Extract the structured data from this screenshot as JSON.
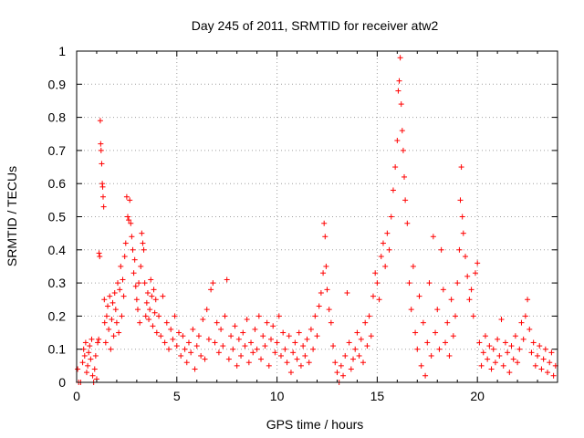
{
  "chart_data": {
    "type": "scatter",
    "title": "Day 245 of 2011, SRMTID for receiver atw2",
    "xlabel": "GPS time / hours",
    "ylabel": "SRMTID / TECUs",
    "xlim": [
      0,
      24
    ],
    "ylim": [
      0,
      1
    ],
    "xticks": [
      0,
      5,
      10,
      15,
      20
    ],
    "xtick_labels": [
      "0",
      "5",
      "10",
      "15",
      "20"
    ],
    "yticks": [
      0,
      0.1,
      0.2,
      0.3,
      0.4,
      0.5,
      0.6,
      0.7,
      0.8,
      0.9,
      1
    ],
    "ytick_labels": [
      "0",
      "0.1",
      "0.2",
      "0.3",
      "0.4",
      "0.5",
      "0.6",
      "0.7",
      "0.8",
      "0.9",
      "1"
    ],
    "grid": true,
    "marker": "plus",
    "series": [
      {
        "name": "SRMTID",
        "color": "#ff0000",
        "points": [
          [
            0.05,
            0.04
          ],
          [
            0.1,
            0.0
          ],
          [
            0.2,
            0.0
          ],
          [
            0.3,
            0.06
          ],
          [
            0.35,
            0.1
          ],
          [
            0.4,
            0.08
          ],
          [
            0.45,
            0.12
          ],
          [
            0.5,
            0.03
          ],
          [
            0.55,
            0.05
          ],
          [
            0.6,
            0.09
          ],
          [
            0.65,
            0.11
          ],
          [
            0.7,
            0.07
          ],
          [
            0.75,
            0.13
          ],
          [
            0.8,
            0.02
          ],
          [
            0.85,
            0.0
          ],
          [
            0.9,
            0.04
          ],
          [
            0.95,
            0.08
          ],
          [
            1.0,
            0.01
          ],
          [
            1.05,
            0.12
          ],
          [
            1.1,
            0.13
          ],
          [
            1.12,
            0.39
          ],
          [
            1.15,
            0.38
          ],
          [
            1.18,
            0.79
          ],
          [
            1.2,
            0.72
          ],
          [
            1.22,
            0.7
          ],
          [
            1.25,
            0.66
          ],
          [
            1.28,
            0.6
          ],
          [
            1.3,
            0.59
          ],
          [
            1.32,
            0.56
          ],
          [
            1.35,
            0.53
          ],
          [
            1.38,
            0.25
          ],
          [
            1.4,
            0.18
          ],
          [
            1.45,
            0.12
          ],
          [
            1.5,
            0.2
          ],
          [
            1.55,
            0.23
          ],
          [
            1.6,
            0.16
          ],
          [
            1.65,
            0.26
          ],
          [
            1.7,
            0.1
          ],
          [
            1.75,
            0.19
          ],
          [
            1.8,
            0.24
          ],
          [
            1.85,
            0.14
          ],
          [
            1.9,
            0.27
          ],
          [
            1.95,
            0.22
          ],
          [
            2.0,
            0.18
          ],
          [
            2.05,
            0.3
          ],
          [
            2.1,
            0.15
          ],
          [
            2.15,
            0.28
          ],
          [
            2.2,
            0.35
          ],
          [
            2.25,
            0.2
          ],
          [
            2.3,
            0.31
          ],
          [
            2.35,
            0.26
          ],
          [
            2.4,
            0.38
          ],
          [
            2.45,
            0.42
          ],
          [
            2.5,
            0.56
          ],
          [
            2.55,
            0.5
          ],
          [
            2.6,
            0.49
          ],
          [
            2.65,
            0.55
          ],
          [
            2.7,
            0.48
          ],
          [
            2.75,
            0.44
          ],
          [
            2.8,
            0.4
          ],
          [
            2.85,
            0.33
          ],
          [
            2.9,
            0.37
          ],
          [
            2.95,
            0.29
          ],
          [
            3.0,
            0.25
          ],
          [
            3.05,
            0.22
          ],
          [
            3.1,
            0.3
          ],
          [
            3.15,
            0.18
          ],
          [
            3.2,
            0.35
          ],
          [
            3.25,
            0.45
          ],
          [
            3.3,
            0.42
          ],
          [
            3.35,
            0.4
          ],
          [
            3.4,
            0.3
          ],
          [
            3.45,
            0.2
          ],
          [
            3.5,
            0.24
          ],
          [
            3.55,
            0.27
          ],
          [
            3.6,
            0.19
          ],
          [
            3.65,
            0.22
          ],
          [
            3.7,
            0.31
          ],
          [
            3.75,
            0.26
          ],
          [
            3.8,
            0.17
          ],
          [
            3.85,
            0.28
          ],
          [
            3.9,
            0.21
          ],
          [
            3.95,
            0.25
          ],
          [
            4.0,
            0.15
          ],
          [
            4.1,
            0.2
          ],
          [
            4.2,
            0.14
          ],
          [
            4.3,
            0.26
          ],
          [
            4.4,
            0.12
          ],
          [
            4.5,
            0.18
          ],
          [
            4.6,
            0.1
          ],
          [
            4.7,
            0.16
          ],
          [
            4.8,
            0.13
          ],
          [
            4.9,
            0.2
          ],
          [
            5.0,
            0.11
          ],
          [
            5.1,
            0.15
          ],
          [
            5.2,
            0.08
          ],
          [
            5.3,
            0.14
          ],
          [
            5.4,
            0.1
          ],
          [
            5.5,
            0.06
          ],
          [
            5.6,
            0.12
          ],
          [
            5.7,
            0.09
          ],
          [
            5.8,
            0.16
          ],
          [
            5.9,
            0.04
          ],
          [
            6.0,
            0.11
          ],
          [
            6.1,
            0.14
          ],
          [
            6.2,
            0.08
          ],
          [
            6.3,
            0.19
          ],
          [
            6.4,
            0.07
          ],
          [
            6.5,
            0.22
          ],
          [
            6.6,
            0.13
          ],
          [
            6.7,
            0.28
          ],
          [
            6.8,
            0.3
          ],
          [
            6.9,
            0.12
          ],
          [
            7.0,
            0.18
          ],
          [
            7.1,
            0.09
          ],
          [
            7.2,
            0.16
          ],
          [
            7.3,
            0.11
          ],
          [
            7.4,
            0.2
          ],
          [
            7.5,
            0.31
          ],
          [
            7.6,
            0.07
          ],
          [
            7.7,
            0.14
          ],
          [
            7.8,
            0.1
          ],
          [
            7.9,
            0.17
          ],
          [
            8.0,
            0.05
          ],
          [
            8.1,
            0.13
          ],
          [
            8.2,
            0.08
          ],
          [
            8.3,
            0.15
          ],
          [
            8.4,
            0.11
          ],
          [
            8.5,
            0.19
          ],
          [
            8.6,
            0.06
          ],
          [
            8.7,
            0.12
          ],
          [
            8.8,
            0.09
          ],
          [
            8.9,
            0.16
          ],
          [
            9.0,
            0.1
          ],
          [
            9.1,
            0.2
          ],
          [
            9.2,
            0.07
          ],
          [
            9.3,
            0.14
          ],
          [
            9.4,
            0.11
          ],
          [
            9.5,
            0.18
          ],
          [
            9.6,
            0.05
          ],
          [
            9.7,
            0.13
          ],
          [
            9.8,
            0.17
          ],
          [
            9.9,
            0.09
          ],
          [
            10.0,
            0.12
          ],
          [
            10.1,
            0.2
          ],
          [
            10.2,
            0.08
          ],
          [
            10.3,
            0.15
          ],
          [
            10.4,
            0.1
          ],
          [
            10.5,
            0.06
          ],
          [
            10.6,
            0.14
          ],
          [
            10.7,
            0.03
          ],
          [
            10.8,
            0.09
          ],
          [
            10.9,
            0.12
          ],
          [
            11.0,
            0.07
          ],
          [
            11.1,
            0.15
          ],
          [
            11.2,
            0.05
          ],
          [
            11.3,
            0.11
          ],
          [
            11.4,
            0.08
          ],
          [
            11.5,
            0.13
          ],
          [
            11.6,
            0.06
          ],
          [
            11.7,
            0.16
          ],
          [
            11.8,
            0.1
          ],
          [
            11.9,
            0.2
          ],
          [
            12.0,
            0.14
          ],
          [
            12.1,
            0.23
          ],
          [
            12.2,
            0.27
          ],
          [
            12.3,
            0.33
          ],
          [
            12.35,
            0.48
          ],
          [
            12.4,
            0.44
          ],
          [
            12.45,
            0.35
          ],
          [
            12.5,
            0.28
          ],
          [
            12.6,
            0.22
          ],
          [
            12.7,
            0.18
          ],
          [
            12.8,
            0.11
          ],
          [
            12.9,
            0.06
          ],
          [
            13.0,
            0.03
          ],
          [
            13.1,
            0.0
          ],
          [
            13.2,
            0.05
          ],
          [
            13.3,
            0.02
          ],
          [
            13.4,
            0.08
          ],
          [
            13.5,
            0.27
          ],
          [
            13.6,
            0.12
          ],
          [
            13.7,
            0.04
          ],
          [
            13.8,
            0.07
          ],
          [
            13.9,
            0.1
          ],
          [
            14.0,
            0.15
          ],
          [
            14.1,
            0.08
          ],
          [
            14.2,
            0.13
          ],
          [
            14.3,
            0.06
          ],
          [
            14.4,
            0.18
          ],
          [
            14.5,
            0.11
          ],
          [
            14.6,
            0.2
          ],
          [
            14.7,
            0.14
          ],
          [
            14.8,
            0.26
          ],
          [
            14.9,
            0.33
          ],
          [
            15.0,
            0.3
          ],
          [
            15.1,
            0.25
          ],
          [
            15.2,
            0.38
          ],
          [
            15.3,
            0.42
          ],
          [
            15.4,
            0.35
          ],
          [
            15.5,
            0.45
          ],
          [
            15.6,
            0.4
          ],
          [
            15.7,
            0.5
          ],
          [
            15.8,
            0.58
          ],
          [
            15.9,
            0.65
          ],
          [
            16.0,
            0.73
          ],
          [
            16.05,
            0.88
          ],
          [
            16.1,
            0.91
          ],
          [
            16.15,
            0.98
          ],
          [
            16.2,
            0.84
          ],
          [
            16.25,
            0.76
          ],
          [
            16.3,
            0.7
          ],
          [
            16.35,
            0.62
          ],
          [
            16.4,
            0.55
          ],
          [
            16.5,
            0.48
          ],
          [
            16.6,
            0.3
          ],
          [
            16.7,
            0.22
          ],
          [
            16.8,
            0.35
          ],
          [
            16.9,
            0.15
          ],
          [
            17.0,
            0.1
          ],
          [
            17.1,
            0.26
          ],
          [
            17.2,
            0.05
          ],
          [
            17.3,
            0.18
          ],
          [
            17.4,
            0.02
          ],
          [
            17.5,
            0.12
          ],
          [
            17.6,
            0.3
          ],
          [
            17.7,
            0.08
          ],
          [
            17.8,
            0.44
          ],
          [
            17.9,
            0.15
          ],
          [
            18.0,
            0.22
          ],
          [
            18.1,
            0.1
          ],
          [
            18.2,
            0.4
          ],
          [
            18.3,
            0.28
          ],
          [
            18.4,
            0.12
          ],
          [
            18.5,
            0.18
          ],
          [
            18.6,
            0.08
          ],
          [
            18.7,
            0.25
          ],
          [
            18.8,
            0.14
          ],
          [
            18.9,
            0.2
          ],
          [
            19.0,
            0.3
          ],
          [
            19.1,
            0.4
          ],
          [
            19.15,
            0.55
          ],
          [
            19.2,
            0.65
          ],
          [
            19.25,
            0.5
          ],
          [
            19.3,
            0.45
          ],
          [
            19.4,
            0.38
          ],
          [
            19.5,
            0.32
          ],
          [
            19.6,
            0.25
          ],
          [
            19.7,
            0.28
          ],
          [
            19.8,
            0.2
          ],
          [
            19.9,
            0.33
          ],
          [
            20.0,
            0.36
          ],
          [
            20.1,
            0.12
          ],
          [
            20.2,
            0.05
          ],
          [
            20.3,
            0.09
          ],
          [
            20.4,
            0.14
          ],
          [
            20.5,
            0.07
          ],
          [
            20.6,
            0.11
          ],
          [
            20.7,
            0.04
          ],
          [
            20.8,
            0.1
          ],
          [
            20.9,
            0.06
          ],
          [
            21.0,
            0.13
          ],
          [
            21.1,
            0.08
          ],
          [
            21.2,
            0.19
          ],
          [
            21.3,
            0.05
          ],
          [
            21.4,
            0.12
          ],
          [
            21.5,
            0.09
          ],
          [
            21.6,
            0.03
          ],
          [
            21.7,
            0.11
          ],
          [
            21.8,
            0.07
          ],
          [
            21.9,
            0.14
          ],
          [
            22.0,
            0.06
          ],
          [
            22.1,
            0.1
          ],
          [
            22.2,
            0.18
          ],
          [
            22.3,
            0.13
          ],
          [
            22.4,
            0.2
          ],
          [
            22.5,
            0.25
          ],
          [
            22.6,
            0.16
          ],
          [
            22.7,
            0.09
          ],
          [
            22.8,
            0.12
          ],
          [
            22.9,
            0.05
          ],
          [
            23.0,
            0.08
          ],
          [
            23.1,
            0.11
          ],
          [
            23.2,
            0.04
          ],
          [
            23.3,
            0.07
          ],
          [
            23.4,
            0.1
          ],
          [
            23.5,
            0.03
          ],
          [
            23.6,
            0.06
          ],
          [
            23.7,
            0.09
          ],
          [
            23.8,
            0.02
          ],
          [
            23.9,
            0.05
          ]
        ]
      }
    ]
  }
}
